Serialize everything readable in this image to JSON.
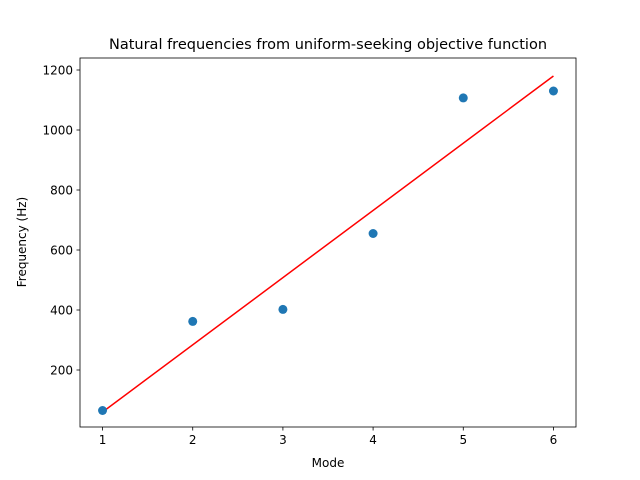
{
  "chart_data": {
    "type": "scatter",
    "title": "Natural frequencies from uniform-seeking objective function",
    "xlabel": "Mode",
    "ylabel": "Frequency (Hz)",
    "xlim": [
      0.75,
      6.25
    ],
    "ylim": [
      10,
      1240
    ],
    "xticks": [
      1,
      2,
      3,
      4,
      5,
      6
    ],
    "yticks": [
      200,
      400,
      600,
      800,
      1000,
      1200
    ],
    "grid": false,
    "series": [
      {
        "kind": "scatter",
        "color": "#1f77b4",
        "x": [
          1,
          2,
          3,
          4,
          5,
          6
        ],
        "y": [
          65,
          362,
          402,
          655,
          1107,
          1130
        ]
      },
      {
        "kind": "line",
        "color": "#ff0000",
        "x": [
          1,
          6
        ],
        "y": [
          60,
          1180
        ]
      }
    ]
  }
}
